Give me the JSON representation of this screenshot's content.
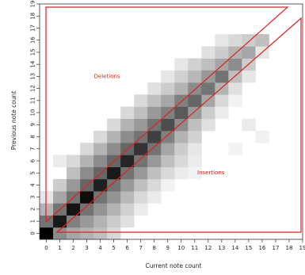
{
  "chart_data": {
    "type": "heatmap",
    "title": "",
    "xlabel": "Current note count",
    "ylabel": "Previous note count",
    "x_ticks": [
      0,
      1,
      2,
      3,
      4,
      5,
      6,
      7,
      8,
      9,
      10,
      11,
      12,
      13,
      14,
      15,
      16,
      17,
      18,
      19
    ],
    "y_ticks": [
      0,
      1,
      2,
      3,
      4,
      5,
      6,
      7,
      8,
      9,
      10,
      11,
      12,
      13,
      14,
      15,
      16,
      17,
      18,
      19
    ],
    "xlim": [
      0,
      19
    ],
    "ylim": [
      0,
      19
    ],
    "value_scale": "0 = white, 1 = black",
    "annotations": [
      {
        "text": "Deletions",
        "x": 4,
        "y": 13
      },
      {
        "text": "Insertions",
        "x": 12,
        "y": 5
      }
    ],
    "cells": [
      [
        0,
        0,
        1.0
      ],
      [
        1,
        0,
        0.45
      ],
      [
        2,
        0,
        0.35
      ],
      [
        3,
        0,
        0.3
      ],
      [
        4,
        0,
        0.25
      ],
      [
        5,
        0,
        0.15
      ],
      [
        0,
        1,
        0.55
      ],
      [
        1,
        1,
        0.9
      ],
      [
        2,
        1,
        0.5
      ],
      [
        3,
        1,
        0.4
      ],
      [
        4,
        1,
        0.3
      ],
      [
        5,
        1,
        0.2
      ],
      [
        6,
        1,
        0.12
      ],
      [
        0,
        2,
        0.3
      ],
      [
        1,
        2,
        0.55
      ],
      [
        2,
        2,
        0.92
      ],
      [
        3,
        2,
        0.55
      ],
      [
        4,
        2,
        0.42
      ],
      [
        5,
        2,
        0.3
      ],
      [
        6,
        2,
        0.18
      ],
      [
        7,
        2,
        0.08
      ],
      [
        0,
        3,
        0.1
      ],
      [
        1,
        3,
        0.35
      ],
      [
        2,
        3,
        0.55
      ],
      [
        3,
        3,
        0.95
      ],
      [
        4,
        3,
        0.55
      ],
      [
        5,
        3,
        0.42
      ],
      [
        6,
        3,
        0.28
      ],
      [
        7,
        3,
        0.15
      ],
      [
        8,
        3,
        0.08
      ],
      [
        1,
        4,
        0.2
      ],
      [
        2,
        4,
        0.4
      ],
      [
        3,
        4,
        0.6
      ],
      [
        4,
        4,
        0.88
      ],
      [
        5,
        4,
        0.55
      ],
      [
        6,
        4,
        0.4
      ],
      [
        7,
        4,
        0.25
      ],
      [
        8,
        4,
        0.15
      ],
      [
        9,
        4,
        0.05
      ],
      [
        2,
        5,
        0.25
      ],
      [
        3,
        5,
        0.45
      ],
      [
        4,
        5,
        0.6
      ],
      [
        5,
        5,
        0.9
      ],
      [
        6,
        5,
        0.55
      ],
      [
        7,
        5,
        0.4
      ],
      [
        8,
        5,
        0.25
      ],
      [
        9,
        5,
        0.15
      ],
      [
        10,
        5,
        0.08
      ],
      [
        11,
        5,
        0.05
      ],
      [
        1,
        6,
        0.08
      ],
      [
        2,
        6,
        0.15
      ],
      [
        3,
        6,
        0.3
      ],
      [
        4,
        6,
        0.45
      ],
      [
        5,
        6,
        0.6
      ],
      [
        6,
        6,
        0.85
      ],
      [
        7,
        6,
        0.55
      ],
      [
        8,
        6,
        0.4
      ],
      [
        9,
        6,
        0.25
      ],
      [
        10,
        6,
        0.15
      ],
      [
        11,
        6,
        0.08
      ],
      [
        3,
        7,
        0.15
      ],
      [
        4,
        7,
        0.3
      ],
      [
        5,
        7,
        0.45
      ],
      [
        6,
        7,
        0.6
      ],
      [
        7,
        7,
        0.8
      ],
      [
        8,
        7,
        0.55
      ],
      [
        9,
        7,
        0.35
      ],
      [
        10,
        7,
        0.2
      ],
      [
        11,
        7,
        0.1
      ],
      [
        4,
        8,
        0.15
      ],
      [
        5,
        8,
        0.3
      ],
      [
        6,
        8,
        0.45
      ],
      [
        7,
        8,
        0.55
      ],
      [
        8,
        8,
        0.75
      ],
      [
        9,
        8,
        0.5
      ],
      [
        10,
        8,
        0.3
      ],
      [
        11,
        8,
        0.18
      ],
      [
        5,
        9,
        0.15
      ],
      [
        6,
        9,
        0.3
      ],
      [
        7,
        9,
        0.4
      ],
      [
        8,
        9,
        0.55
      ],
      [
        9,
        9,
        0.7
      ],
      [
        10,
        9,
        0.45
      ],
      [
        11,
        9,
        0.25
      ],
      [
        12,
        9,
        0.12
      ],
      [
        6,
        10,
        0.15
      ],
      [
        7,
        10,
        0.25
      ],
      [
        8,
        10,
        0.4
      ],
      [
        9,
        10,
        0.5
      ],
      [
        10,
        10,
        0.65
      ],
      [
        11,
        10,
        0.4
      ],
      [
        12,
        10,
        0.2
      ],
      [
        13,
        10,
        0.08
      ],
      [
        7,
        11,
        0.15
      ],
      [
        8,
        11,
        0.25
      ],
      [
        9,
        11,
        0.35
      ],
      [
        10,
        11,
        0.5
      ],
      [
        11,
        11,
        0.6
      ],
      [
        12,
        11,
        0.35
      ],
      [
        13,
        11,
        0.15
      ],
      [
        14,
        11,
        0.05
      ],
      [
        8,
        12,
        0.12
      ],
      [
        9,
        12,
        0.2
      ],
      [
        10,
        12,
        0.3
      ],
      [
        11,
        12,
        0.45
      ],
      [
        12,
        12,
        0.55
      ],
      [
        13,
        12,
        0.3
      ],
      [
        14,
        12,
        0.12
      ],
      [
        9,
        13,
        0.1
      ],
      [
        10,
        13,
        0.18
      ],
      [
        11,
        13,
        0.28
      ],
      [
        12,
        13,
        0.4
      ],
      [
        13,
        13,
        0.55
      ],
      [
        14,
        13,
        0.25
      ],
      [
        15,
        13,
        0.1
      ],
      [
        10,
        14,
        0.1
      ],
      [
        11,
        14,
        0.18
      ],
      [
        12,
        14,
        0.25
      ],
      [
        13,
        14,
        0.35
      ],
      [
        14,
        14,
        0.45
      ],
      [
        15,
        14,
        0.2
      ],
      [
        12,
        15,
        0.12
      ],
      [
        13,
        15,
        0.2
      ],
      [
        14,
        15,
        0.3
      ],
      [
        15,
        15,
        0.35
      ],
      [
        16,
        15,
        0.1
      ],
      [
        13,
        16,
        0.1
      ],
      [
        14,
        16,
        0.15
      ],
      [
        15,
        16,
        0.2
      ],
      [
        16,
        16,
        0.25
      ],
      [
        12,
        13,
        0.4
      ],
      [
        15,
        9,
        0.08
      ],
      [
        16,
        8,
        0.06
      ],
      [
        14,
        7,
        0.05
      ]
    ]
  }
}
